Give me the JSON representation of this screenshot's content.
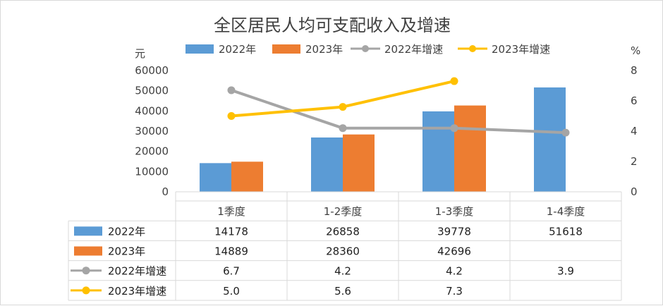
{
  "chart_data": {
    "type": "bar",
    "title": "全区居民人均可支配收入及增速",
    "y_left_unit": "元",
    "y_right_unit": "%",
    "y_left_ticks": [
      "0",
      "10000",
      "20000",
      "30000",
      "40000",
      "50000",
      "60000"
    ],
    "y_right_ticks": [
      "0",
      "2",
      "4",
      "6",
      "8"
    ],
    "ylim_left": [
      0,
      60000
    ],
    "ylim_right": [
      0,
      8
    ],
    "categories": [
      "1季度",
      "1-2季度",
      "1-3季度",
      "1-4季度"
    ],
    "legend_position": "top",
    "grid": false,
    "series": [
      {
        "name": "2022年",
        "kind": "bar",
        "axis": "left",
        "color": "#5b9bd5",
        "values": [
          14178,
          26858,
          39778,
          51618
        ],
        "labels": [
          "14178",
          "26858",
          "39778",
          "51618"
        ]
      },
      {
        "name": "2023年",
        "kind": "bar",
        "axis": "left",
        "color": "#ed7d31",
        "values": [
          14889,
          28360,
          42696,
          null
        ],
        "labels": [
          "14889",
          "28360",
          "42696",
          ""
        ]
      },
      {
        "name": "2022年增速",
        "kind": "line",
        "axis": "right",
        "color": "#a5a5a5",
        "values": [
          6.7,
          4.2,
          4.2,
          3.9
        ],
        "labels": [
          "6.7",
          "4.2",
          "4.2",
          "3.9"
        ]
      },
      {
        "name": "2023年增速",
        "kind": "line",
        "axis": "right",
        "color": "#ffc000",
        "values": [
          5.0,
          5.6,
          7.3,
          null
        ],
        "labels": [
          "5.0",
          "5.6",
          "7.3",
          ""
        ]
      }
    ]
  }
}
